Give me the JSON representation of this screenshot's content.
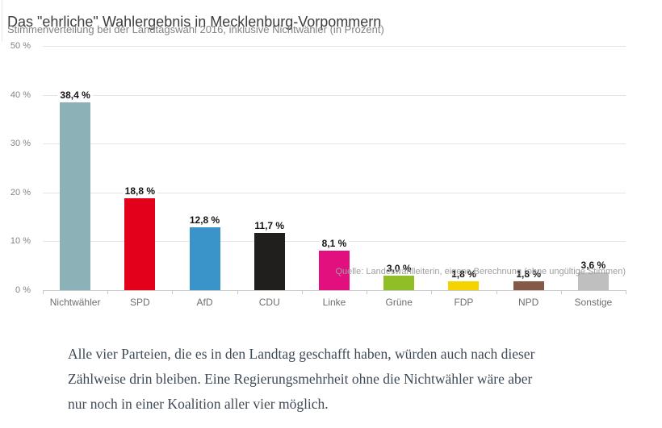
{
  "header": {
    "title": "Das \"ehrliche\" Wahlergebnis in Mecklenburg-Vorpommern",
    "subtitle": "Stimmenverteilung bei der Landtagswahl 2016, inklusive Nichtwähler (in Prozent)"
  },
  "chart_data": {
    "type": "bar",
    "categories": [
      "Nichtwähler",
      "SPD",
      "AfD",
      "CDU",
      "Linke",
      "Grüne",
      "FDP",
      "NPD",
      "Sonstige"
    ],
    "values": [
      38.4,
      18.8,
      12.8,
      11.7,
      8.1,
      3.0,
      1.8,
      1.8,
      3.6
    ],
    "value_labels": [
      "38,4 %",
      "18,8 %",
      "12,8 %",
      "11,7 %",
      "8,1 %",
      "3,0 %",
      "1,8 %",
      "1,8 %",
      "3,6 %"
    ],
    "bar_colors": [
      "#8cb2b8",
      "#e2001a",
      "#3a94c9",
      "#211e1e",
      "#e2107e",
      "#8fbe27",
      "#f5d300",
      "#855948",
      "#bfbfbf"
    ],
    "title": "Das \"ehrliche\" Wahlergebnis in Mecklenburg-Vorpommern",
    "xlabel": "",
    "ylabel": "",
    "ylim": [
      0,
      50
    ],
    "yticks": [
      0,
      10,
      20,
      30,
      40,
      50
    ],
    "ytick_labels": [
      "0 %",
      "10 %",
      "20 %",
      "30 %",
      "40 %",
      "50 %"
    ],
    "grid": true,
    "legend": "none",
    "source": "Quelle: Landeswahlleiterin, eigene Berechnung (ohne ungültige Stimmen)"
  },
  "paragraph": {
    "lines": {
      "0": "Alle vier Parteien, die es in den Landtag geschafft haben, würden auch nach dieser",
      "1": "Zählweise drin bleiben. Eine Regierungsmehrheit ohne die Nichtwähler wäre aber",
      "2": "nur noch in einer Koalition aller vier möglich."
    }
  }
}
